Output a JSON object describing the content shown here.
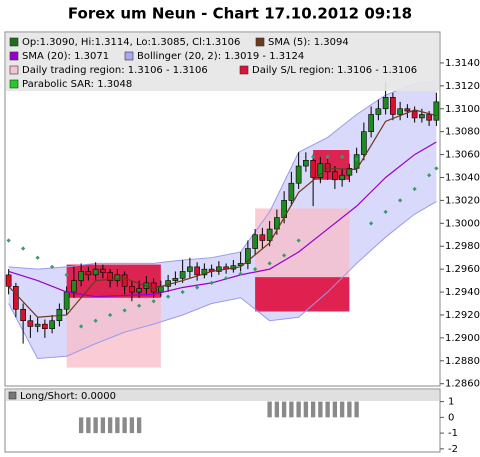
{
  "chart_data": [
    {
      "type": "candlestick",
      "title": "Forex um Neun - Chart 17.10.2012 09:18",
      "up_color": "#1f8a1f",
      "down_color": "#d8102c",
      "ylim": [
        1.2858,
        1.3167
      ],
      "yticks": [
        {
          "value": 1.286,
          "label": "1.2860"
        },
        {
          "value": 1.288,
          "label": "1.2880"
        },
        {
          "value": 1.29,
          "label": "1.2900"
        },
        {
          "value": 1.292,
          "label": "1.2920"
        },
        {
          "value": 1.294,
          "label": "1.2940"
        },
        {
          "value": 1.296,
          "label": "1.2960"
        },
        {
          "value": 1.298,
          "label": "1.2980"
        },
        {
          "value": 1.3,
          "label": "1.3000"
        },
        {
          "value": 1.302,
          "label": "1.3020"
        },
        {
          "value": 1.304,
          "label": "1.3040"
        },
        {
          "value": 1.306,
          "label": "1.3060"
        },
        {
          "value": 1.308,
          "label": "1.3080"
        },
        {
          "value": 1.31,
          "label": "1.3100"
        },
        {
          "value": 1.312,
          "label": "1.3120"
        },
        {
          "value": 1.314,
          "label": "1.3140"
        }
      ],
      "legend": [
        {
          "label": "Op:1.3090, Hi:1.3114, Lo:1.3085, Cl:1.3106",
          "color": "#1f6b1f"
        },
        {
          "label": "SMA (5): 1.3094",
          "color": "#6b3a1f"
        },
        {
          "label": "SMA (20): 1.3071",
          "color": "#9900cc"
        },
        {
          "label": "Bollinger (20, 2): 1.3019 - 1.3124",
          "color": "#a8a8f4"
        },
        {
          "label": "Daily trading region: 1.3106 - 1.3106",
          "color": "#f6c4d0"
        },
        {
          "label": "Daily S/L region: 1.3106 - 1.3106",
          "color": "#e0103a"
        },
        {
          "label": "Parabolic SAR: 1.3048",
          "color": "#22cc22"
        }
      ],
      "ohlc": {
        "open": [
          1.2955,
          1.2945,
          1.2925,
          1.2915,
          1.291,
          1.2912,
          1.2908,
          1.2915,
          1.2925,
          1.294,
          1.295,
          1.2958,
          1.2955,
          1.296,
          1.2957,
          1.295,
          1.2955,
          1.2945,
          1.294,
          1.2943,
          1.2948,
          1.294,
          1.2945,
          1.295,
          1.2952,
          1.2958,
          1.2962,
          1.2955,
          1.296,
          1.2958,
          1.2962,
          1.296,
          1.2963,
          1.2965,
          1.2978,
          1.299,
          1.2985,
          1.2995,
          1.3005,
          1.302,
          1.3035,
          1.305,
          1.3055,
          1.304,
          1.3052,
          1.3045,
          1.3038,
          1.3042,
          1.3048,
          1.306,
          1.308,
          1.3095,
          1.31,
          1.311,
          1.3095,
          1.31,
          1.3098,
          1.3092,
          1.3095,
          1.309
        ],
        "high": [
          1.296,
          1.2948,
          1.293,
          1.292,
          1.2918,
          1.2916,
          1.292,
          1.293,
          1.2945,
          1.2962,
          1.2965,
          1.2962,
          1.2966,
          1.2964,
          1.296,
          1.296,
          1.2958,
          1.295,
          1.295,
          1.2954,
          1.2952,
          1.295,
          1.2955,
          1.2958,
          1.2968,
          1.297,
          1.2966,
          1.2965,
          1.2964,
          1.2967,
          1.2965,
          1.2968,
          1.2975,
          1.2985,
          1.2995,
          1.2996,
          1.3002,
          1.3012,
          1.3028,
          1.3045,
          1.3062,
          1.3062,
          1.306,
          1.3058,
          1.3056,
          1.305,
          1.3048,
          1.3052,
          1.3066,
          1.3088,
          1.3102,
          1.3108,
          1.3124,
          1.3114,
          1.3106,
          1.3104,
          1.3102,
          1.31,
          1.3098,
          1.3114
        ],
        "low": [
          1.2938,
          1.2918,
          1.2895,
          1.29,
          1.2905,
          1.29,
          1.2904,
          1.291,
          1.292,
          1.2935,
          1.2945,
          1.295,
          1.295,
          1.2952,
          1.2944,
          1.2945,
          1.2938,
          1.2932,
          1.2935,
          1.2938,
          1.2935,
          1.2936,
          1.294,
          1.2946,
          1.2948,
          1.2952,
          1.295,
          1.2952,
          1.2953,
          1.2955,
          1.2956,
          1.2957,
          1.2958,
          1.296,
          1.2972,
          1.2978,
          1.298,
          1.299,
          1.3,
          1.3015,
          1.303,
          1.3045,
          1.3015,
          1.3035,
          1.3038,
          1.303,
          1.3032,
          1.3036,
          1.3044,
          1.3055,
          1.3075,
          1.309,
          1.3095,
          1.309,
          1.309,
          1.3092,
          1.3088,
          1.3088,
          1.3085,
          1.3085
        ],
        "close": [
          1.2945,
          1.2925,
          1.2915,
          1.291,
          1.2912,
          1.2908,
          1.2915,
          1.2925,
          1.294,
          1.295,
          1.2958,
          1.2955,
          1.296,
          1.2957,
          1.295,
          1.2955,
          1.2945,
          1.294,
          1.2943,
          1.2948,
          1.294,
          1.2945,
          1.295,
          1.2952,
          1.2958,
          1.2962,
          1.2955,
          1.296,
          1.2958,
          1.2962,
          1.296,
          1.2963,
          1.2965,
          1.2978,
          1.299,
          1.2985,
          1.2995,
          1.3005,
          1.302,
          1.3035,
          1.305,
          1.3055,
          1.304,
          1.3052,
          1.3045,
          1.3038,
          1.3042,
          1.3048,
          1.306,
          1.308,
          1.3095,
          1.31,
          1.311,
          1.3095,
          1.31,
          1.3098,
          1.3092,
          1.3095,
          1.309,
          1.3106
        ]
      },
      "bollinger": {
        "color": "#9a9aee",
        "fill": "#d2d2fa",
        "x": [
          0,
          4,
          8,
          12,
          16,
          20,
          24,
          28,
          32,
          36,
          40,
          44,
          48,
          52,
          56,
          59
        ],
        "upper": [
          1.2962,
          1.296,
          1.2962,
          1.2965,
          1.2965,
          1.2965,
          1.2968,
          1.297,
          1.2975,
          1.301,
          1.3062,
          1.3075,
          1.3095,
          1.3112,
          1.3122,
          1.3124
        ],
        "lower": [
          1.293,
          1.2882,
          1.2884,
          1.2895,
          1.2905,
          1.2912,
          1.292,
          1.293,
          1.2935,
          1.2915,
          1.2918,
          1.294,
          1.2965,
          1.2988,
          1.3008,
          1.3019
        ]
      },
      "sma5": {
        "color": "#6b3a1f",
        "x": [
          0,
          4,
          8,
          12,
          16,
          20,
          24,
          28,
          32,
          36,
          40,
          44,
          48,
          52,
          56,
          59
        ],
        "values": [
          1.2945,
          1.2918,
          1.292,
          1.295,
          1.2952,
          1.2943,
          1.295,
          1.2958,
          1.2962,
          1.2983,
          1.3027,
          1.3048,
          1.3047,
          1.3089,
          1.3099,
          1.3094
        ]
      },
      "sma20": {
        "color": "#9900cc",
        "x": [
          0,
          4,
          8,
          12,
          16,
          20,
          24,
          28,
          32,
          36,
          40,
          44,
          48,
          52,
          56,
          59
        ],
        "values": [
          1.2958,
          1.295,
          1.294,
          1.2936,
          1.2937,
          1.2938,
          1.2944,
          1.2948,
          1.2955,
          1.296,
          1.2975,
          1.2995,
          1.3015,
          1.304,
          1.306,
          1.3071
        ]
      },
      "sar": {
        "color": "#3a9a6a",
        "x": [
          0,
          2,
          4,
          6,
          8,
          10,
          12,
          14,
          16,
          18,
          20,
          22,
          24,
          26,
          28,
          30,
          32,
          34,
          36,
          38,
          40,
          42,
          44,
          46,
          48,
          50,
          52,
          54,
          56,
          58,
          59
        ],
        "values": [
          1.2985,
          1.2978,
          1.297,
          1.2962,
          1.2955,
          1.291,
          1.2915,
          1.292,
          1.2924,
          1.2928,
          1.2932,
          1.2936,
          1.294,
          1.2944,
          1.2948,
          1.2952,
          1.2956,
          1.296,
          1.2965,
          1.2972,
          1.2985,
          1.3058,
          1.3058,
          1.3058,
          1.3056,
          1.3,
          1.301,
          1.302,
          1.303,
          1.3042,
          1.3048
        ]
      },
      "trading_regions": {
        "color": "#f8bcc8",
        "regions": [
          {
            "x": [
              8,
              21
            ],
            "y": [
              1.2874,
              1.294
            ]
          },
          {
            "x": [
              34,
              47
            ],
            "y": [
              1.2925,
              1.3013
            ]
          }
        ]
      },
      "sl_regions": {
        "color": "#dc1040",
        "regions": [
          {
            "x": [
              8,
              21
            ],
            "y": [
              1.2935,
              1.2964
            ]
          },
          {
            "x": [
              34,
              47
            ],
            "y": [
              1.2923,
              1.2953
            ]
          },
          {
            "x": [
              42,
              47
            ],
            "y": [
              1.3038,
              1.3064
            ]
          }
        ]
      }
    },
    {
      "type": "bar",
      "title": "Long/Short: 0.0000",
      "color": "#8a8a8a",
      "ylim": [
        -2.2,
        1.8
      ],
      "yticks": [
        1,
        0,
        -1,
        -2
      ],
      "values": [
        0,
        0,
        0,
        0,
        0,
        0,
        0,
        0,
        0,
        0,
        -1,
        -1,
        -1,
        -1,
        -1,
        -1,
        -1,
        -1,
        -1,
        0,
        0,
        0,
        0,
        0,
        0,
        0,
        0,
        0,
        0,
        0,
        0,
        0,
        0,
        0,
        0,
        0,
        1,
        1,
        1,
        1,
        1,
        1,
        1,
        1,
        1,
        1,
        1,
        1,
        1,
        0,
        0,
        0,
        0,
        0,
        0,
        0,
        0,
        0,
        0,
        0
      ]
    }
  ]
}
